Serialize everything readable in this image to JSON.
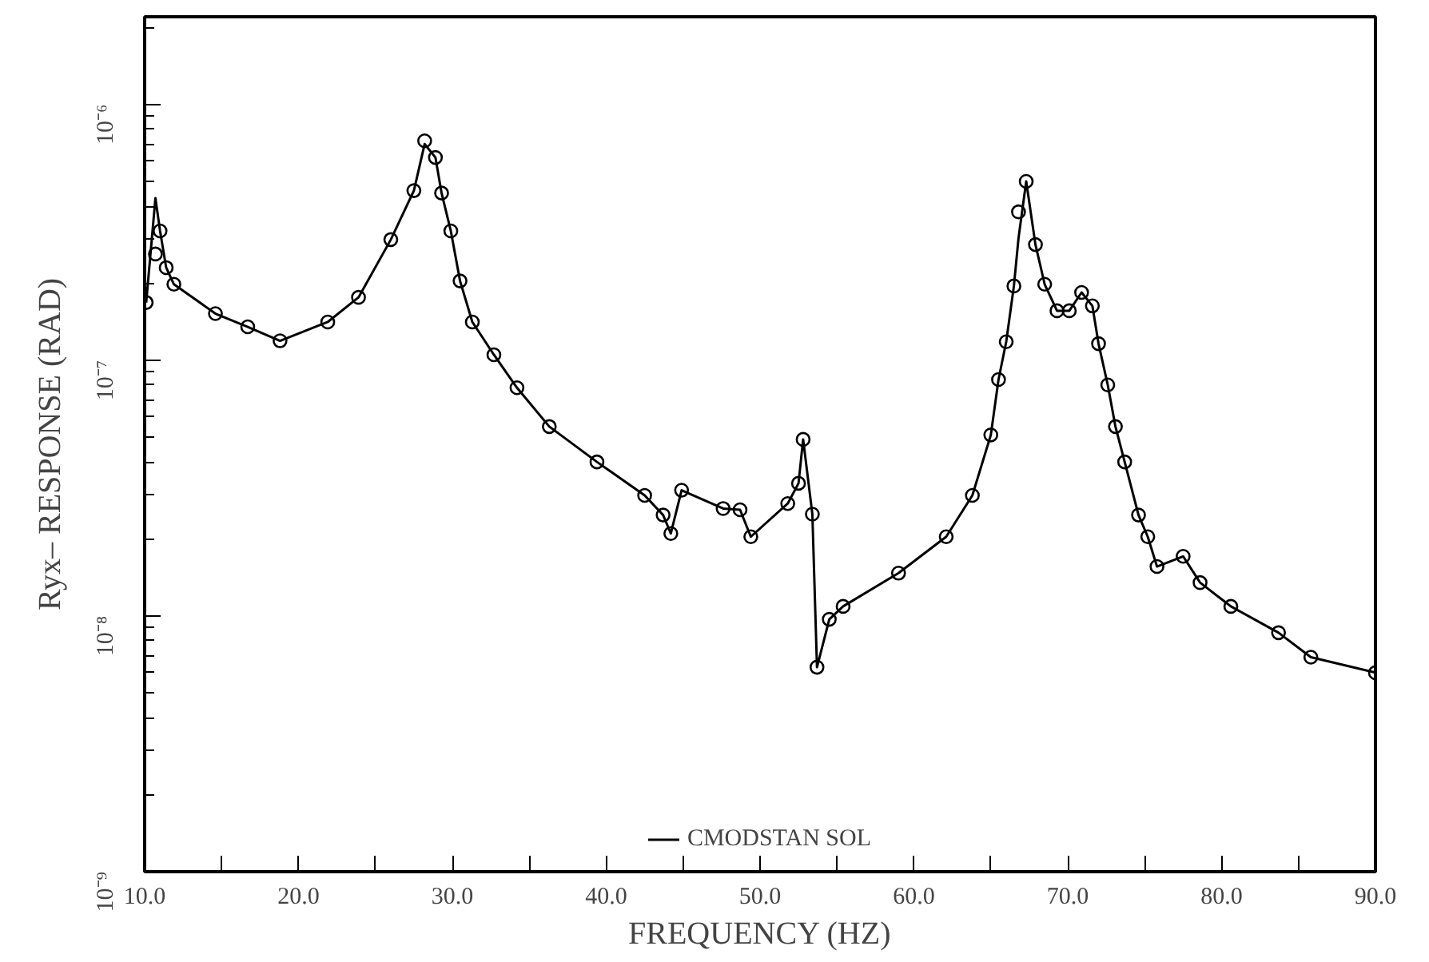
{
  "chart_data": {
    "type": "line",
    "xlabel": "FREQUENCY (HZ)",
    "ylabel": "Ryx– RESPONSE (RAD)",
    "log": "y",
    "grid": false,
    "legend": "bottom",
    "x": [
      10.1,
      10.7,
      11.0,
      11.4,
      11.9,
      14.6,
      16.7,
      18.8,
      21.9,
      23.9,
      26.0,
      27.5,
      28.2,
      28.9,
      29.3,
      29.9,
      30.5,
      31.3,
      32.7,
      34.2,
      36.3,
      39.4,
      42.5,
      43.7,
      44.2,
      44.9,
      47.6,
      48.7,
      49.4,
      51.8,
      52.5,
      52.8,
      53.4,
      53.7,
      54.5,
      55.4,
      59.0,
      62.1,
      63.8,
      65.0,
      65.5,
      66.0,
      66.5,
      66.8,
      67.3,
      67.9,
      68.5,
      69.3,
      70.1,
      70.9,
      71.6,
      72.0,
      72.6,
      73.1,
      73.7,
      74.6,
      75.2,
      75.8,
      77.5,
      78.6,
      80.6,
      83.7,
      85.8,
      90.0
    ],
    "xlim": [
      10,
      90
    ],
    "xticks": [
      {
        "value": 10,
        "label": "10.0"
      },
      {
        "value": 15,
        "label": null
      },
      {
        "value": 20,
        "label": "20.0"
      },
      {
        "value": 25,
        "label": null
      },
      {
        "value": 30,
        "label": "30.0"
      },
      {
        "value": 35,
        "label": null
      },
      {
        "value": 40,
        "label": "40.0"
      },
      {
        "value": 45,
        "label": null
      },
      {
        "value": 50,
        "label": "50.0"
      },
      {
        "value": 55,
        "label": null
      },
      {
        "value": 60,
        "label": "60.0"
      },
      {
        "value": 65,
        "label": null
      },
      {
        "value": 70,
        "label": "70.0"
      },
      {
        "value": 75,
        "label": null
      },
      {
        "value": 80,
        "label": "80.0"
      },
      {
        "value": 85,
        "label": null
      },
      {
        "value": 90,
        "label": "90.0"
      }
    ],
    "ylim": [
      1e-09,
      2.2e-06
    ],
    "yticks": [
      {
        "value": 1e-09,
        "label": "10⁻⁹"
      },
      {
        "value": 1e-08,
        "label": "10⁻⁸"
      },
      {
        "value": 1e-07,
        "label": "10⁻⁷"
      },
      {
        "value": 1e-06,
        "label": "10⁻⁶"
      }
    ],
    "series": [
      {
        "name": "CMODSTAN SOL",
        "color": "#000000",
        "line_style": "solid",
        "values": [
          1.68e-07,
          4.3e-07,
          3.2e-07,
          2.3e-07,
          1.98e-07,
          1.52e-07,
          1.35e-07,
          1.19e-07,
          1.41e-07,
          1.76e-07,
          2.96e-07,
          4.6e-07,
          7e-07,
          6.2e-07,
          4.5e-07,
          3.2e-07,
          2.04e-07,
          1.41e-07,
          1.05e-07,
          7.8e-08,
          5.5e-08,
          4e-08,
          2.96e-08,
          2.48e-08,
          2.1e-08,
          3.1e-08,
          2.63e-08,
          2.6e-08,
          2.04e-08,
          2.75e-08,
          3.3e-08,
          4.9e-08,
          2.5e-08,
          6.3e-09,
          9.7e-09,
          1.09e-08,
          1.47e-08,
          2.04e-08,
          2.96e-08,
          5.1e-08,
          8.4e-08,
          1.18e-07,
          1.95e-07,
          3e-07,
          5e-07,
          2.83e-07,
          1.98e-07,
          1.56e-07,
          1.56e-07,
          1.84e-07,
          1.63e-07,
          1.16e-07,
          8e-08,
          5.5e-08,
          4e-08,
          2.48e-08,
          2.04e-08,
          1.56e-08,
          1.71e-08,
          1.35e-08,
          1.09e-08,
          8.6e-09,
          6.9e-09,
          6e-09
        ]
      },
      {
        "type": "scatter",
        "color": "#000000",
        "marker": "circle",
        "values": [
          1.68e-07,
          2.6e-07,
          3.2e-07,
          2.3e-07,
          1.98e-07,
          1.52e-07,
          1.35e-07,
          1.19e-07,
          1.41e-07,
          1.76e-07,
          2.96e-07,
          4.6e-07,
          7.2e-07,
          6.2e-07,
          4.5e-07,
          3.2e-07,
          2.04e-07,
          1.41e-07,
          1.05e-07,
          7.8e-08,
          5.5e-08,
          4e-08,
          2.96e-08,
          2.48e-08,
          2.1e-08,
          3.1e-08,
          2.63e-08,
          2.6e-08,
          2.04e-08,
          2.75e-08,
          3.3e-08,
          4.9e-08,
          2.5e-08,
          6.3e-09,
          9.7e-09,
          1.09e-08,
          1.47e-08,
          2.04e-08,
          2.96e-08,
          5.1e-08,
          8.4e-08,
          1.18e-07,
          1.95e-07,
          3.8e-07,
          5e-07,
          2.83e-07,
          1.98e-07,
          1.56e-07,
          1.56e-07,
          1.84e-07,
          1.63e-07,
          1.16e-07,
          8e-08,
          5.5e-08,
          4e-08,
          2.48e-08,
          2.04e-08,
          1.56e-08,
          1.71e-08,
          1.35e-08,
          1.09e-08,
          8.6e-09,
          6.9e-09,
          6e-09
        ]
      }
    ]
  }
}
